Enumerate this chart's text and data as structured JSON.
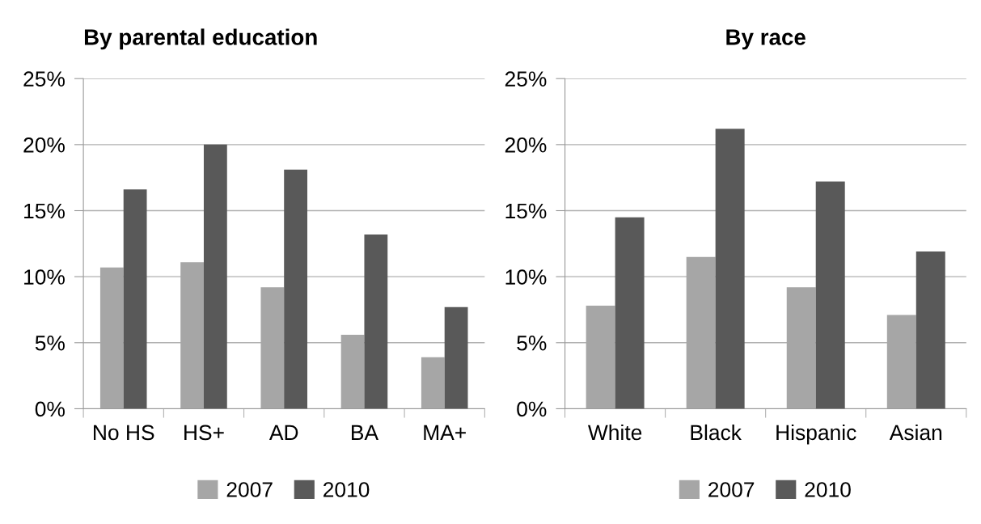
{
  "chart_data": [
    {
      "type": "bar",
      "title": "By parental education",
      "categories": [
        "No HS",
        "HS+",
        "AD",
        "BA",
        "MA+"
      ],
      "series": [
        {
          "name": "2007",
          "color": "#a6a6a6",
          "values": [
            10.7,
            11.1,
            9.2,
            5.6,
            3.9
          ]
        },
        {
          "name": "2010",
          "color": "#595959",
          "values": [
            16.6,
            20.0,
            18.1,
            13.2,
            7.7
          ]
        }
      ],
      "ylim": [
        0,
        25
      ],
      "yticks": [
        {
          "value": 0,
          "label": "0%"
        },
        {
          "value": 5,
          "label": "5%"
        },
        {
          "value": 10,
          "label": "10%"
        },
        {
          "value": 15,
          "label": "15%"
        },
        {
          "value": 20,
          "label": "20%"
        },
        {
          "value": 25,
          "label": "25%"
        }
      ],
      "grid": "y",
      "legend": "bottom"
    },
    {
      "type": "bar",
      "title": "By race",
      "categories": [
        "White",
        "Black",
        "Hispanic",
        "Asian"
      ],
      "series": [
        {
          "name": "2007",
          "color": "#a6a6a6",
          "values": [
            7.8,
            11.5,
            9.2,
            7.1
          ]
        },
        {
          "name": "2010",
          "color": "#595959",
          "values": [
            14.5,
            21.2,
            17.2,
            11.9
          ]
        }
      ],
      "ylim": [
        0,
        25
      ],
      "yticks": [
        {
          "value": 0,
          "label": "0%"
        },
        {
          "value": 5,
          "label": "5%"
        },
        {
          "value": 10,
          "label": "10%"
        },
        {
          "value": 15,
          "label": "15%"
        },
        {
          "value": 20,
          "label": "20%"
        },
        {
          "value": 25,
          "label": "25%"
        }
      ],
      "grid": "y",
      "legend": "bottom"
    }
  ]
}
